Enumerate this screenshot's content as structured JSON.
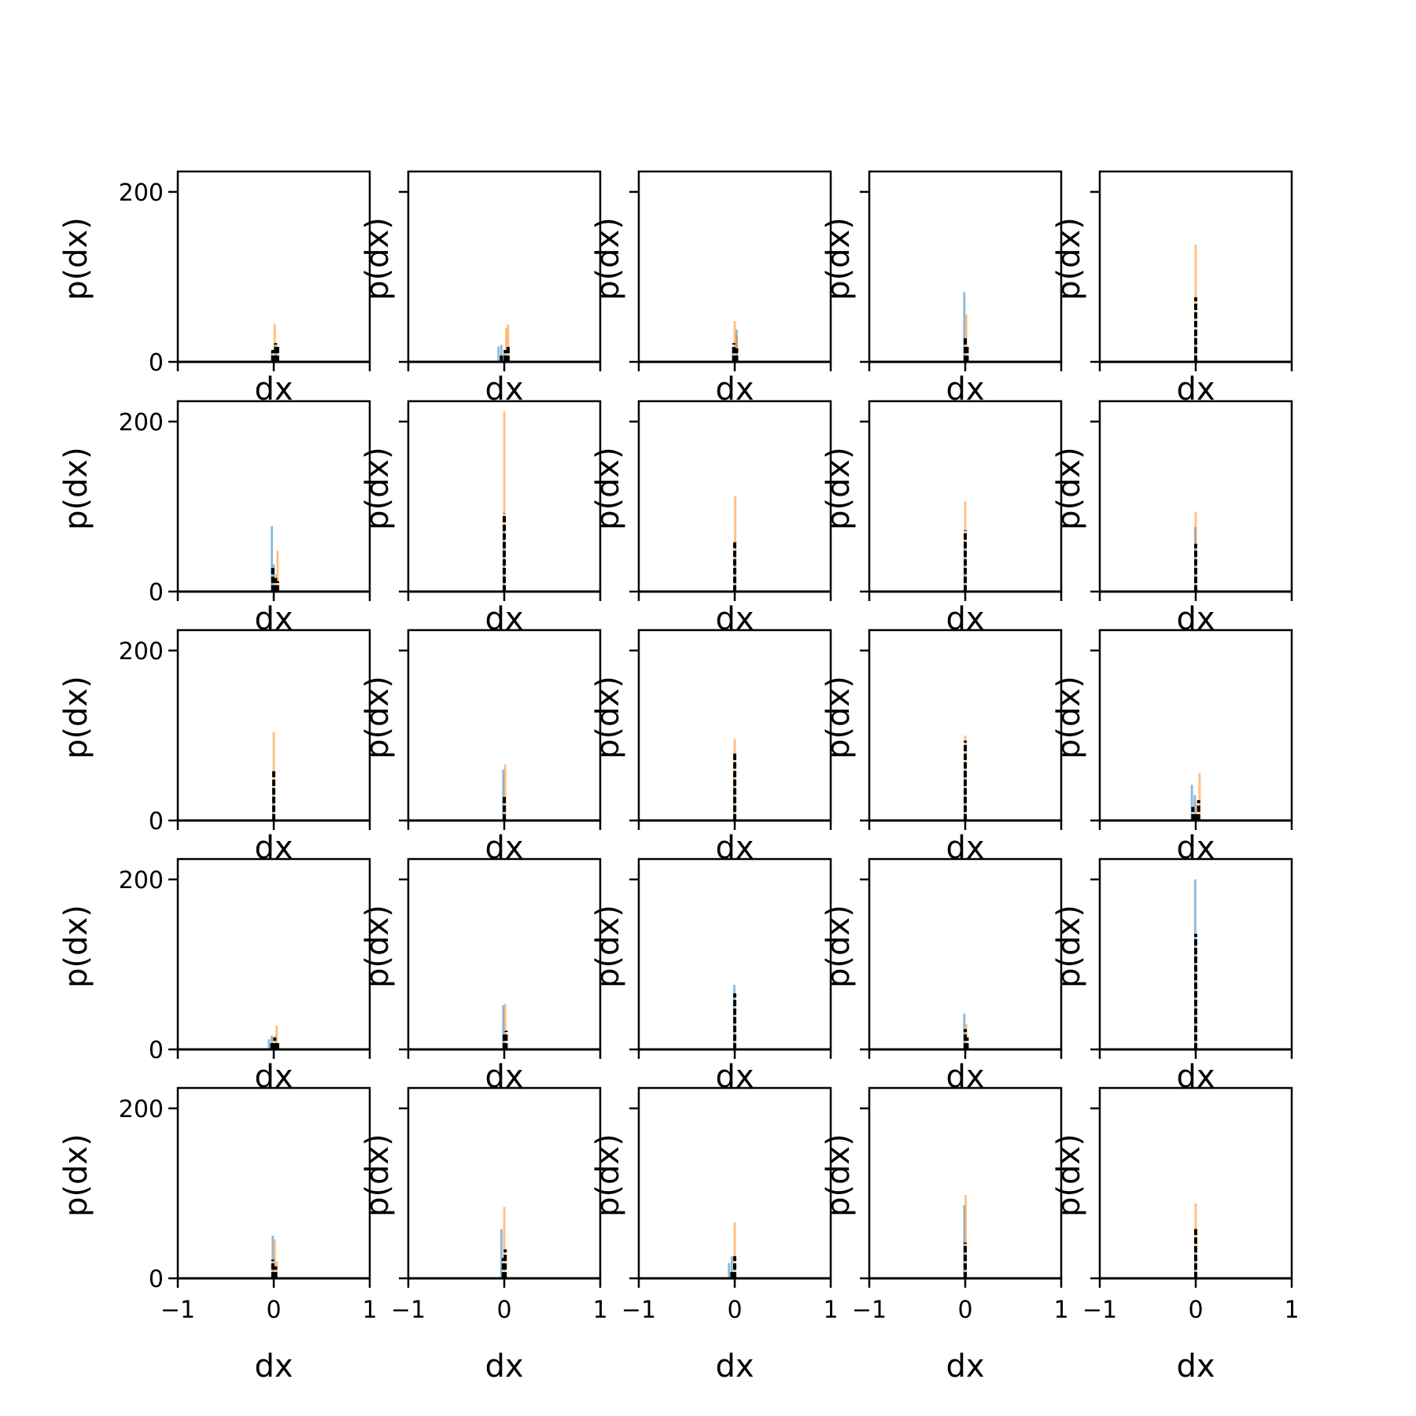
{
  "chart_data": {
    "type": "bar",
    "layout": "5x5 grid of histogram panels, shared x and y axes",
    "xlabel": "dx",
    "ylabel": "p(dx)",
    "xlim": [
      -1,
      1
    ],
    "ylim": [
      0,
      224
    ],
    "xticks": [
      -1,
      0,
      1
    ],
    "xtick_labels": [
      "−1",
      "0",
      "1"
    ],
    "yticks": [
      0,
      200
    ],
    "ytick_labels": [
      "0",
      "200"
    ],
    "grid": false,
    "legend": "none",
    "series_colors": {
      "series_1": "#1f77b4",
      "series_2": "#ff7f0e",
      "series_3": "#000000"
    },
    "panels": [
      {
        "row": 1,
        "col": 1,
        "blue_bars": [
          [
            -0.02,
            12
          ],
          [
            0.01,
            22
          ],
          [
            0.03,
            10
          ]
        ],
        "orange_bars": [
          [
            0.01,
            45
          ],
          [
            0.03,
            20
          ]
        ],
        "black_bars": [
          [
            -0.01,
            14
          ],
          [
            0.02,
            22
          ],
          [
            0.04,
            18
          ]
        ]
      },
      {
        "row": 1,
        "col": 2,
        "blue_bars": [
          [
            -0.06,
            18
          ],
          [
            -0.03,
            20
          ],
          [
            0.0,
            10
          ]
        ],
        "orange_bars": [
          [
            0.02,
            40
          ],
          [
            0.04,
            44
          ]
        ],
        "black_bars": [
          [
            -0.03,
            10
          ],
          [
            0.01,
            14
          ],
          [
            0.04,
            18
          ]
        ]
      },
      {
        "row": 1,
        "col": 3,
        "blue_bars": [
          [
            -0.02,
            16
          ],
          [
            0.02,
            38
          ]
        ],
        "orange_bars": [
          [
            0.0,
            48
          ],
          [
            0.02,
            30
          ]
        ],
        "black_bars": [
          [
            -0.01,
            22
          ],
          [
            0.02,
            16
          ]
        ]
      },
      {
        "row": 1,
        "col": 4,
        "blue_bars": [
          [
            -0.01,
            82
          ]
        ],
        "orange_bars": [
          [
            0.01,
            56
          ]
        ],
        "black_bars": [
          [
            0.0,
            30
          ],
          [
            0.02,
            18
          ]
        ]
      },
      {
        "row": 1,
        "col": 5,
        "blue_bars": [
          [
            -0.005,
            30
          ]
        ],
        "orange_bars": [
          [
            0.0,
            138
          ]
        ],
        "black_bars": [
          [
            0.0,
            76
          ]
        ]
      },
      {
        "row": 2,
        "col": 1,
        "blue_bars": [
          [
            -0.02,
            77
          ],
          [
            0.0,
            32
          ]
        ],
        "orange_bars": [
          [
            0.04,
            48
          ],
          [
            0.02,
            20
          ]
        ],
        "black_bars": [
          [
            -0.01,
            30
          ],
          [
            0.02,
            16
          ],
          [
            0.04,
            12
          ]
        ]
      },
      {
        "row": 2,
        "col": 2,
        "blue_bars": [
          [
            -0.005,
            77
          ]
        ],
        "orange_bars": [
          [
            0.0,
            212
          ]
        ],
        "black_bars": [
          [
            0.0,
            92
          ]
        ]
      },
      {
        "row": 2,
        "col": 3,
        "blue_bars": [
          [
            0.0,
            40
          ]
        ],
        "orange_bars": [
          [
            0.005,
            112
          ]
        ],
        "black_bars": [
          [
            0.0,
            58
          ]
        ]
      },
      {
        "row": 2,
        "col": 4,
        "blue_bars": [
          [
            -0.005,
            60
          ]
        ],
        "orange_bars": [
          [
            0.0,
            106
          ]
        ],
        "black_bars": [
          [
            0.0,
            72
          ]
        ]
      },
      {
        "row": 2,
        "col": 5,
        "blue_bars": [
          [
            -0.005,
            76
          ]
        ],
        "orange_bars": [
          [
            0.0,
            94
          ]
        ],
        "black_bars": [
          [
            0.0,
            56
          ]
        ]
      },
      {
        "row": 3,
        "col": 1,
        "blue_bars": [
          [
            -0.005,
            40
          ]
        ],
        "orange_bars": [
          [
            0.0,
            104
          ]
        ],
        "black_bars": [
          [
            0.0,
            58
          ]
        ]
      },
      {
        "row": 3,
        "col": 2,
        "blue_bars": [
          [
            -0.01,
            60
          ]
        ],
        "orange_bars": [
          [
            0.01,
            66
          ]
        ],
        "black_bars": [
          [
            0.0,
            28
          ]
        ]
      },
      {
        "row": 3,
        "col": 3,
        "blue_bars": [
          [
            -0.005,
            50
          ]
        ],
        "orange_bars": [
          [
            0.0,
            96
          ]
        ],
        "black_bars": [
          [
            0.0,
            80
          ]
        ]
      },
      {
        "row": 3,
        "col": 4,
        "blue_bars": [
          [
            -0.005,
            60
          ]
        ],
        "orange_bars": [
          [
            0.0,
            100
          ]
        ],
        "black_bars": [
          [
            0.0,
            94
          ]
        ]
      },
      {
        "row": 3,
        "col": 5,
        "blue_bars": [
          [
            -0.04,
            42
          ],
          [
            -0.01,
            30
          ]
        ],
        "orange_bars": [
          [
            0.04,
            56
          ],
          [
            0.01,
            20
          ]
        ],
        "black_bars": [
          [
            -0.03,
            16
          ],
          [
            0.0,
            10
          ],
          [
            0.03,
            24
          ]
        ]
      },
      {
        "row": 4,
        "col": 1,
        "blue_bars": [
          [
            -0.05,
            12
          ],
          [
            -0.02,
            16
          ]
        ],
        "orange_bars": [
          [
            0.03,
            28
          ],
          [
            0.01,
            16
          ]
        ],
        "black_bars": [
          [
            -0.02,
            10
          ],
          [
            0.01,
            14
          ],
          [
            0.04,
            8
          ]
        ]
      },
      {
        "row": 4,
        "col": 2,
        "blue_bars": [
          [
            -0.01,
            52
          ]
        ],
        "orange_bars": [
          [
            0.01,
            54
          ]
        ],
        "black_bars": [
          [
            0.0,
            20
          ],
          [
            0.02,
            22
          ]
        ]
      },
      {
        "row": 4,
        "col": 3,
        "blue_bars": [
          [
            -0.005,
            76
          ]
        ],
        "orange_bars": [
          [
            0.0,
            40
          ]
        ],
        "black_bars": [
          [
            0.0,
            66
          ]
        ]
      },
      {
        "row": 4,
        "col": 4,
        "blue_bars": [
          [
            -0.01,
            42
          ]
        ],
        "orange_bars": [
          [
            0.01,
            30
          ]
        ],
        "black_bars": [
          [
            0.0,
            24
          ],
          [
            0.02,
            14
          ]
        ]
      },
      {
        "row": 4,
        "col": 5,
        "blue_bars": [
          [
            -0.005,
            200
          ]
        ],
        "orange_bars": [
          [
            0.0,
            120
          ]
        ],
        "black_bars": [
          [
            0.0,
            136
          ]
        ]
      },
      {
        "row": 5,
        "col": 1,
        "blue_bars": [
          [
            -0.01,
            50
          ]
        ],
        "orange_bars": [
          [
            0.01,
            46
          ],
          [
            0.03,
            20
          ]
        ],
        "black_bars": [
          [
            -0.01,
            22
          ],
          [
            0.02,
            14
          ]
        ]
      },
      {
        "row": 5,
        "col": 2,
        "blue_bars": [
          [
            -0.03,
            58
          ]
        ],
        "orange_bars": [
          [
            0.0,
            84
          ]
        ],
        "black_bars": [
          [
            -0.01,
            24
          ],
          [
            0.01,
            34
          ]
        ]
      },
      {
        "row": 5,
        "col": 3,
        "blue_bars": [
          [
            -0.06,
            18
          ],
          [
            -0.03,
            26
          ]
        ],
        "orange_bars": [
          [
            0.0,
            66
          ]
        ],
        "black_bars": [
          [
            -0.03,
            10
          ],
          [
            0.0,
            26
          ]
        ]
      },
      {
        "row": 5,
        "col": 4,
        "blue_bars": [
          [
            -0.01,
            86
          ]
        ],
        "orange_bars": [
          [
            0.005,
            98
          ]
        ],
        "black_bars": [
          [
            0.0,
            42
          ]
        ]
      },
      {
        "row": 5,
        "col": 5,
        "blue_bars": [
          [
            -0.005,
            30
          ]
        ],
        "orange_bars": [
          [
            0.0,
            88
          ]
        ],
        "black_bars": [
          [
            0.0,
            58
          ]
        ]
      }
    ]
  }
}
